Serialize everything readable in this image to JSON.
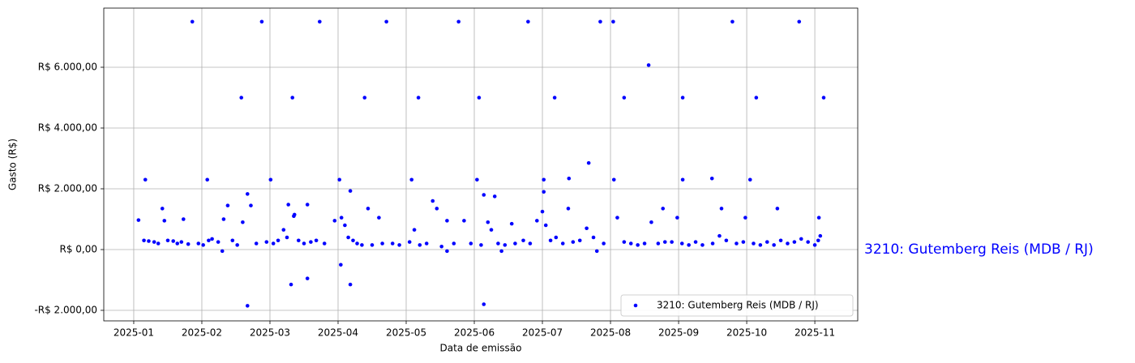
{
  "chart_data": {
    "type": "scatter",
    "xlabel": "Data de emissão",
    "ylabel": "Gasto (R$)",
    "annotation": "3210: Gutemberg Reis (MDB / RJ)",
    "xlim": [
      0.56,
      11.63
    ],
    "ylim": [
      -2347,
      7947
    ],
    "xticks": [
      {
        "value": 1,
        "label": "2025-01"
      },
      {
        "value": 2,
        "label": "2025-02"
      },
      {
        "value": 3,
        "label": "2025-03"
      },
      {
        "value": 4,
        "label": "2025-04"
      },
      {
        "value": 5,
        "label": "2025-05"
      },
      {
        "value": 6,
        "label": "2025-06"
      },
      {
        "value": 7,
        "label": "2025-07"
      },
      {
        "value": 8,
        "label": "2025-08"
      },
      {
        "value": 9,
        "label": "2025-09"
      },
      {
        "value": 10,
        "label": "2025-10"
      },
      {
        "value": 11,
        "label": "2025-11"
      }
    ],
    "yticks": [
      {
        "value": -2000,
        "label": "-R$ 2.000,00"
      },
      {
        "value": 0,
        "label": "R$ 0,00"
      },
      {
        "value": 2000,
        "label": "R$ 2.000,00"
      },
      {
        "value": 4000,
        "label": "R$ 4.000,00"
      },
      {
        "value": 6000,
        "label": "R$ 6.000,00"
      }
    ],
    "grid": true,
    "legend": "lower right",
    "series": [
      {
        "name": "3210: Gutemberg Reis (MDB / RJ)",
        "color": "#0000ff",
        "x": [
          1.86,
          2.88,
          3.73,
          4.71,
          5.77,
          6.79,
          7.85,
          8.04,
          9.79,
          10.77,
          2.58,
          3.33,
          4.39,
          5.18,
          6.07,
          7.18,
          8.2,
          9.06,
          10.14,
          11.13,
          8.56,
          1.17,
          2.08,
          3.01,
          4.02,
          5.08,
          6.04,
          7.02,
          8.05,
          9.06,
          9.49,
          10.05,
          1.07,
          2.67,
          3.31,
          3.55,
          4.18,
          6.14,
          7.68,
          4.18,
          2.67,
          6.14,
          7.02,
          5.39,
          11.06,
          11.08,
          9.98,
          8.98,
          1.42,
          4.44,
          8.77,
          10.45,
          9.63,
          3.27,
          3.55,
          7.39,
          7.38,
          1.73,
          3.35,
          4.04,
          1.15,
          1.22,
          1.3,
          1.36,
          1.45,
          1.5,
          1.58,
          1.64,
          1.7,
          1.8,
          1.95,
          2.02,
          2.1,
          2.15,
          2.24,
          2.32,
          2.38,
          2.45,
          2.52,
          2.6,
          2.72,
          2.8,
          2.95,
          3.05,
          3.12,
          3.2,
          3.25,
          3.36,
          3.42,
          3.5,
          3.6,
          3.68,
          3.8,
          3.95,
          4.05,
          4.1,
          4.15,
          4.22,
          4.28,
          4.35,
          4.5,
          4.6,
          4.65,
          4.8,
          4.9,
          5.05,
          5.12,
          5.2,
          5.3,
          5.45,
          5.52,
          5.6,
          5.7,
          5.85,
          5.95,
          6.1,
          6.2,
          6.25,
          6.3,
          6.35,
          6.45,
          6.55,
          6.6,
          6.72,
          6.82,
          6.92,
          7.0,
          7.05,
          7.12,
          7.2,
          7.3,
          7.45,
          7.55,
          7.65,
          7.75,
          7.9,
          8.1,
          8.2,
          8.3,
          8.4,
          8.5,
          8.6,
          8.7,
          8.8,
          8.9,
          9.05,
          9.15,
          9.25,
          9.35,
          9.5,
          9.6,
          9.7,
          9.85,
          9.95,
          10.1,
          10.2,
          10.3,
          10.4,
          10.5,
          10.6,
          10.7,
          10.8,
          10.9,
          11.0,
          11.05,
          2.3,
          5.6,
          6.4,
          7.8
        ],
        "y": [
          7500,
          7500,
          7500,
          7500,
          7500,
          7500,
          7500,
          7500,
          7500,
          7500,
          5000,
          5000,
          5000,
          5000,
          5000,
          5000,
          5000,
          5000,
          5000,
          5000,
          6070,
          2300,
          2300,
          2300,
          2300,
          2300,
          2300,
          2300,
          2300,
          2300,
          2340,
          2300,
          970,
          -1850,
          -1150,
          -950,
          -1150,
          -1800,
          2850,
          1930,
          1830,
          1800,
          1900,
          1600,
          1050,
          450,
          1050,
          1050,
          1350,
          1350,
          1350,
          1350,
          1350,
          1480,
          1480,
          2340,
          1350,
          1000,
          1100,
          -500,
          300,
          280,
          250,
          200,
          950,
          300,
          280,
          200,
          250,
          180,
          200,
          150,
          300,
          350,
          250,
          1000,
          1450,
          300,
          150,
          900,
          1450,
          200,
          250,
          200,
          300,
          650,
          400,
          1150,
          300,
          200,
          250,
          300,
          200,
          950,
          1050,
          800,
          400,
          300,
          200,
          150,
          150,
          1050,
          200,
          200,
          150,
          250,
          650,
          150,
          200,
          1350,
          100,
          950,
          200,
          950,
          200,
          150,
          900,
          650,
          1750,
          200,
          150,
          850,
          200,
          300,
          200,
          950,
          1250,
          800,
          300,
          400,
          200,
          250,
          300,
          700,
          400,
          200,
          1050,
          250,
          200,
          150,
          200,
          900,
          200,
          250,
          250,
          200,
          150,
          250,
          150,
          200,
          450,
          300,
          200,
          250,
          200,
          150,
          250,
          150,
          300,
          200,
          250,
          350,
          250,
          150,
          300,
          -50,
          -50,
          -50,
          -50
        ]
      }
    ]
  }
}
